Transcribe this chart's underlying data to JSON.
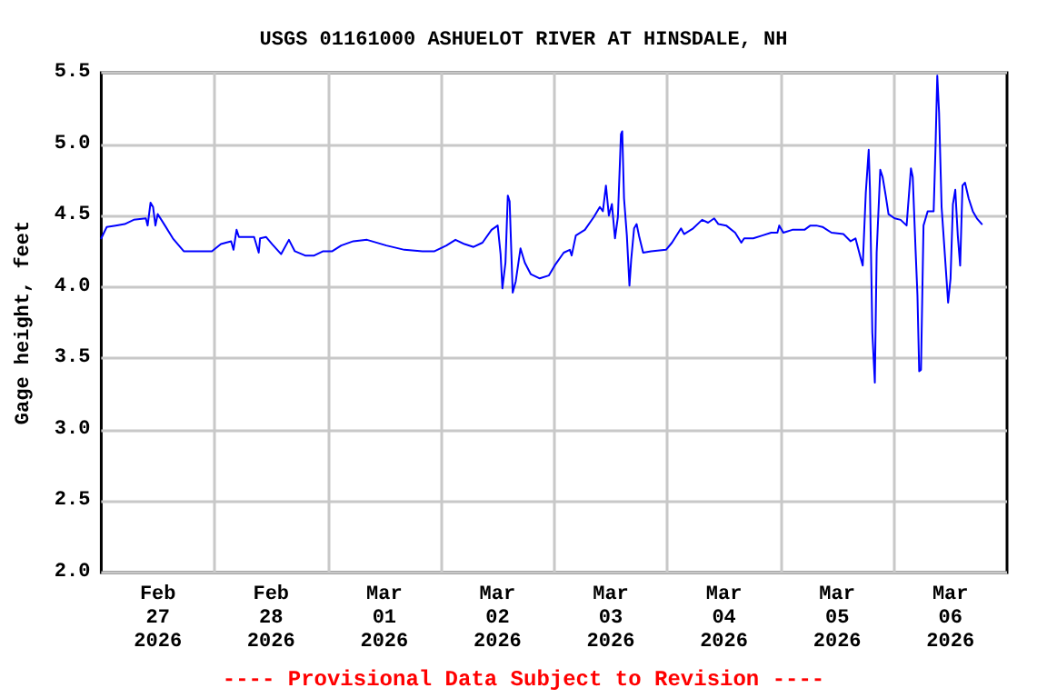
{
  "chart_data": {
    "type": "line",
    "title": "USGS 01161000 ASHUELOT RIVER AT HINSDALE, NH",
    "ylabel": "Gage height, feet",
    "annotations": [
      "---- Provisional Data Subject to Revision ----"
    ],
    "x": [
      "2026-02-27T00:00",
      "2026-02-27T01:10",
      "2026-02-27T03:04",
      "2026-02-27T04:58",
      "2026-02-27T06:53",
      "2026-02-27T09:27",
      "2026-02-27T09:50",
      "2026-02-27T10:27",
      "2026-02-27T10:59",
      "2026-02-27T11:29",
      "2026-02-27T11:58",
      "2026-02-27T13:30",
      "2026-02-27T15:11",
      "2026-02-27T17:29",
      "2026-02-27T23:27",
      "2026-02-28T01:22",
      "2026-02-28T03:32",
      "2026-02-28T04:02",
      "2026-02-28T04:41",
      "2026-02-28T05:11",
      "2026-02-28T08:24",
      "2026-02-28T09:23",
      "2026-02-28T09:40",
      "2026-02-28T10:55",
      "2026-02-28T12:13",
      "2026-02-28T14:08",
      "2026-02-28T15:47",
      "2026-02-28T17:02",
      "2026-02-28T19:13",
      "2026-02-28T21:08",
      "2026-02-28T23:03",
      "2026-03-01T00:58",
      "2026-03-01T02:52",
      "2026-03-01T05:26",
      "2026-03-01T08:20",
      "2026-03-01T12:26",
      "2026-03-01T16:16",
      "2026-03-01T20:05",
      "2026-03-01T22:39",
      "2026-03-02T01:10",
      "2026-03-02T03:05",
      "2026-03-02T05:00",
      "2026-03-02T06:55",
      "2026-03-02T08:49",
      "2026-03-02T10:44",
      "2026-03-02T12:02",
      "2026-03-02T12:39",
      "2026-03-02T13:02",
      "2026-03-02T13:41",
      "2026-03-02T14:11",
      "2026-03-02T14:34",
      "2026-03-02T15:13",
      "2026-03-02T15:52",
      "2026-03-02T16:52",
      "2026-03-02T17:47",
      "2026-03-02T19:02",
      "2026-03-02T20:57",
      "2026-03-02T22:52",
      "2026-03-03T00:07",
      "2026-03-03T02:02",
      "2026-03-03T03:20",
      "2026-03-03T03:43",
      "2026-03-03T04:36",
      "2026-03-03T06:31",
      "2026-03-03T08:25",
      "2026-03-03T09:41",
      "2026-03-03T10:20",
      "2026-03-03T10:59",
      "2026-03-03T11:36",
      "2026-03-03T12:15",
      "2026-03-03T12:54",
      "2026-03-03T13:31",
      "2026-03-03T14:10",
      "2026-03-03T14:26",
      "2026-03-03T14:49",
      "2026-03-03T15:25",
      "2026-03-03T15:58",
      "2026-03-03T16:20",
      "2026-03-03T16:57",
      "2026-03-03T17:29",
      "2026-03-03T17:59",
      "2026-03-03T18:52",
      "2026-03-03T20:33",
      "2026-03-03T23:43",
      "2026-03-04T00:59",
      "2026-03-04T02:54",
      "2026-03-04T03:33",
      "2026-03-04T05:28",
      "2026-03-04T07:22",
      "2026-03-04T08:38",
      "2026-03-04T09:56",
      "2026-03-04T10:49",
      "2026-03-04T12:28",
      "2026-03-04T14:22",
      "2026-03-04T15:41",
      "2026-03-04T16:17",
      "2026-03-04T18:12",
      "2026-03-04T20:07",
      "2026-03-04T22:01",
      "2026-03-04T23:20",
      "2026-03-04T23:43",
      "2026-03-05T00:35",
      "2026-03-05T02:30",
      "2026-03-05T05:04",
      "2026-03-05T06:19",
      "2026-03-05T07:35",
      "2026-03-05T08:53",
      "2026-03-05T10:48",
      "2026-03-05T13:19",
      "2026-03-05T14:51",
      "2026-03-05T15:53",
      "2026-03-05T16:55",
      "2026-03-05T17:25",
      "2026-03-05T18:04",
      "2026-03-05T18:41",
      "2026-03-05T18:57",
      "2026-03-05T19:27",
      "2026-03-05T19:59",
      "2026-03-05T20:22",
      "2026-03-05T21:08",
      "2026-03-05T21:38",
      "2026-03-05T22:17",
      "2026-03-05T22:53",
      "2026-03-06T00:11",
      "2026-03-06T01:27",
      "2026-03-06T02:43",
      "2026-03-06T03:38",
      "2026-03-06T04:01",
      "2026-03-06T04:37",
      "2026-03-06T05:01",
      "2026-03-06T05:23",
      "2026-03-06T05:46",
      "2026-03-06T06:18",
      "2026-03-06T07:11",
      "2026-03-06T08:27",
      "2026-03-06T08:50",
      "2026-03-06T09:13",
      "2026-03-06T09:36",
      "2026-03-06T10:08",
      "2026-03-06T10:44",
      "2026-03-06T11:31",
      "2026-03-06T12:02",
      "2026-03-06T12:32",
      "2026-03-06T13:02",
      "2026-03-06T13:34",
      "2026-03-06T14:04",
      "2026-03-06T14:34",
      "2026-03-06T15:06",
      "2026-03-06T15:52",
      "2026-03-06T16:45",
      "2026-03-06T17:37",
      "2026-03-06T18:40"
    ],
    "series": [
      {
        "color": "#0000ff",
        "values": [
          4.34,
          4.42,
          4.43,
          4.44,
          4.47,
          4.48,
          4.43,
          4.59,
          4.56,
          4.43,
          4.51,
          4.43,
          4.34,
          4.25,
          4.25,
          4.3,
          4.32,
          4.26,
          4.4,
          4.35,
          4.35,
          4.24,
          4.34,
          4.35,
          4.3,
          4.23,
          4.33,
          4.25,
          4.22,
          4.22,
          4.25,
          4.25,
          4.29,
          4.32,
          4.33,
          4.29,
          4.26,
          4.25,
          4.25,
          4.29,
          4.33,
          4.3,
          4.28,
          4.31,
          4.4,
          4.43,
          4.23,
          3.99,
          4.17,
          4.64,
          4.6,
          3.96,
          4.04,
          4.27,
          4.17,
          4.09,
          4.06,
          4.08,
          4.15,
          4.24,
          4.26,
          4.22,
          4.36,
          4.4,
          4.49,
          4.56,
          4.53,
          4.71,
          4.5,
          4.58,
          4.34,
          4.49,
          5.07,
          5.09,
          4.62,
          4.36,
          4.01,
          4.19,
          4.41,
          4.44,
          4.36,
          4.24,
          4.25,
          4.26,
          4.31,
          4.41,
          4.37,
          4.41,
          4.47,
          4.45,
          4.48,
          4.44,
          4.43,
          4.38,
          4.31,
          4.34,
          4.34,
          4.36,
          4.38,
          4.38,
          4.43,
          4.38,
          4.4,
          4.4,
          4.43,
          4.43,
          4.42,
          4.38,
          4.37,
          4.32,
          4.34,
          4.21,
          4.15,
          4.66,
          4.96,
          4.68,
          3.68,
          3.33,
          4.24,
          4.82,
          4.77,
          4.64,
          4.51,
          4.48,
          4.47,
          4.43,
          4.83,
          4.77,
          4.26,
          3.94,
          3.41,
          3.42,
          4.43,
          4.53,
          4.53,
          4.96,
          5.48,
          5.22,
          4.56,
          4.27,
          3.89,
          4.06,
          4.58,
          4.68,
          4.36,
          4.15,
          4.71,
          4.73,
          4.62,
          4.53,
          4.48,
          4.44
        ]
      }
    ],
    "xlim": [
      "2026-02-27T00:00",
      "2026-03-07T00:00"
    ],
    "xticks": [
      {
        "value": "2026-02-27T12:00",
        "label": "Feb\n27\n2026"
      },
      {
        "value": "2026-02-28T00:00",
        "label": null
      },
      {
        "value": "2026-02-28T12:00",
        "label": "Feb\n28\n2026"
      },
      {
        "value": "2026-03-01T00:00",
        "label": null
      },
      {
        "value": "2026-03-01T12:00",
        "label": "Mar\n01\n2026"
      },
      {
        "value": "2026-03-02T00:00",
        "label": null
      },
      {
        "value": "2026-03-02T12:00",
        "label": "Mar\n02\n2026"
      },
      {
        "value": "2026-03-03T00:00",
        "label": null
      },
      {
        "value": "2026-03-03T12:00",
        "label": "Mar\n03\n2026"
      },
      {
        "value": "2026-03-04T00:00",
        "label": null
      },
      {
        "value": "2026-03-04T12:00",
        "label": "Mar\n04\n2026"
      },
      {
        "value": "2026-03-05T00:00",
        "label": null
      },
      {
        "value": "2026-03-05T12:00",
        "label": "Mar\n05\n2026"
      },
      {
        "value": "2026-03-06T00:00",
        "label": null
      },
      {
        "value": "2026-03-06T12:00",
        "label": "Mar\n06\n2026"
      }
    ],
    "ylim": [
      2.0,
      5.5
    ],
    "yticks": [
      {
        "value": 2.0,
        "label": "2.0"
      },
      {
        "value": 2.5,
        "label": "2.5"
      },
      {
        "value": 3.0,
        "label": "3.0"
      },
      {
        "value": 3.5,
        "label": "3.5"
      },
      {
        "value": 4.0,
        "label": "4.0"
      },
      {
        "value": 4.5,
        "label": "4.5"
      },
      {
        "value": 5.0,
        "label": "5.0"
      },
      {
        "value": 5.5,
        "label": "5.5"
      }
    ],
    "grid": true,
    "marker": "none",
    "line_style": "solid"
  }
}
